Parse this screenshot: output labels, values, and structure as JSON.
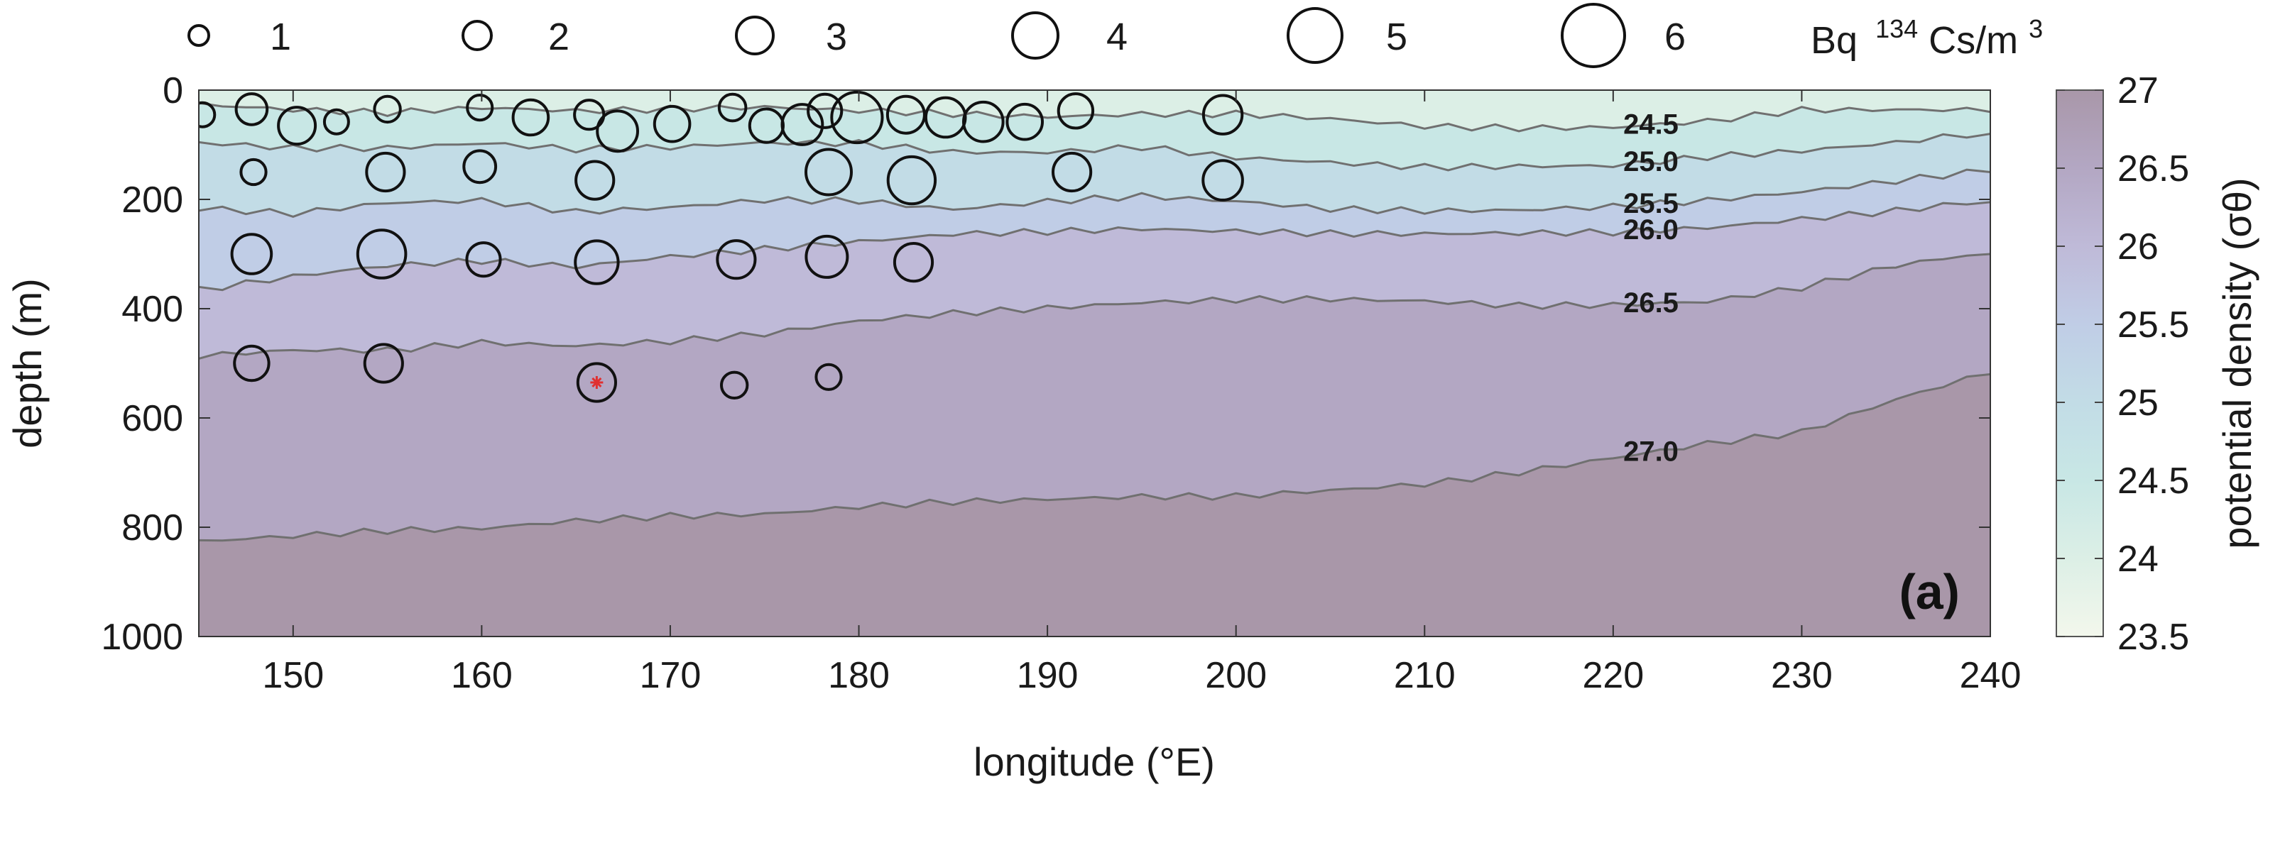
{
  "chart_data": {
    "type": "scatter",
    "panel_label": "(a)",
    "xlabel": "longitude (°E)",
    "ylabel": "depth (m)",
    "xlim": [
      145,
      240
    ],
    "ylim": [
      1000,
      0
    ],
    "xticks": [
      "150",
      "160",
      "170",
      "180",
      "190",
      "200",
      "210",
      "220",
      "230",
      "240"
    ],
    "yticks": [
      "0",
      "200",
      "400",
      "600",
      "800",
      "1000"
    ],
    "colorbar": {
      "label": "potential density (σθ)",
      "range": [
        23.5,
        27
      ],
      "ticks": [
        "23.5",
        "24",
        "24.5",
        "25",
        "25.5",
        "26",
        "26.5",
        "27"
      ],
      "colors": [
        "#f3f7ec",
        "#dcefe6",
        "#c8e7e5",
        "#c2dce6",
        "#c0cde6",
        "#bfbad8",
        "#b3a7c3",
        "#a997a9"
      ]
    },
    "contours": [
      {
        "level": "24.5",
        "x": [
          145,
          150,
          155,
          160,
          165,
          170,
          175,
          180,
          185,
          190,
          195,
          200,
          205,
          210,
          215,
          220,
          225,
          230,
          235,
          240
        ],
        "depth": [
          30,
          40,
          45,
          35,
          40,
          35,
          30,
          35,
          40,
          45,
          40,
          40,
          50,
          65,
          70,
          70,
          60,
          40,
          40,
          40
        ]
      },
      {
        "level": "25.0",
        "x": [
          145,
          150,
          155,
          160,
          165,
          170,
          175,
          180,
          185,
          190,
          195,
          200,
          205,
          210,
          215,
          220,
          225,
          230,
          235,
          240
        ],
        "depth": [
          100,
          110,
          110,
          100,
          110,
          105,
          95,
          95,
          110,
          110,
          100,
          120,
          130,
          140,
          140,
          140,
          125,
          115,
          100,
          80
        ]
      },
      {
        "level": "25.5",
        "x": [
          145,
          150,
          155,
          160,
          165,
          170,
          175,
          180,
          185,
          190,
          195,
          200,
          205,
          210,
          215,
          220,
          225,
          230,
          235,
          240
        ],
        "depth": [
          220,
          230,
          210,
          205,
          225,
          215,
          200,
          200,
          215,
          200,
          190,
          200,
          215,
          220,
          220,
          215,
          205,
          190,
          170,
          150
        ]
      },
      {
        "level": "26.0",
        "x": [
          145,
          150,
          155,
          160,
          165,
          170,
          175,
          180,
          185,
          190,
          195,
          200,
          205,
          210,
          215,
          220,
          225,
          230,
          235,
          240
        ],
        "depth": [
          370,
          345,
          325,
          315,
          325,
          305,
          290,
          275,
          260,
          255,
          250,
          255,
          260,
          262,
          262,
          262,
          255,
          240,
          225,
          205
        ]
      },
      {
        "level": "26.5",
        "x": [
          145,
          150,
          155,
          160,
          165,
          170,
          175,
          180,
          185,
          190,
          195,
          200,
          205,
          210,
          215,
          220,
          225,
          230,
          235,
          240
        ],
        "depth": [
          490,
          480,
          480,
          465,
          470,
          460,
          445,
          420,
          405,
          395,
          385,
          380,
          380,
          385,
          395,
          395,
          390,
          365,
          325,
          300
        ]
      },
      {
        "level": "27.0",
        "x": [
          145,
          150,
          155,
          160,
          165,
          170,
          175,
          180,
          185,
          190,
          195,
          200,
          205,
          210,
          215,
          220,
          225,
          230,
          235,
          240
        ],
        "depth": [
          830,
          820,
          810,
          805,
          790,
          780,
          775,
          760,
          750,
          745,
          740,
          740,
          730,
          720,
          700,
          675,
          650,
          630,
          570,
          520
        ]
      }
    ],
    "series": [
      {
        "x": [
          145.2,
          147.8,
          150.2,
          152.3,
          155.0,
          159.9,
          162.6,
          165.7,
          167.2,
          170.1,
          173.3,
          175.1,
          177.0,
          178.2,
          179.9,
          182.5,
          184.6,
          186.6,
          188.8,
          191.5,
          199.3,
          147.9,
          154.9,
          159.9,
          166.0,
          178.4,
          182.8,
          191.3,
          199.3,
          147.8,
          154.7,
          160.1,
          166.1,
          173.5,
          178.3,
          182.9,
          147.8,
          154.8,
          166.1,
          173.4,
          178.4
        ],
        "depth": [
          45,
          35,
          65,
          58,
          35,
          32,
          50,
          45,
          75,
          62,
          32,
          65,
          63,
          38,
          50,
          45,
          50,
          58,
          58,
          38,
          45,
          150,
          150,
          140,
          165,
          150,
          165,
          150,
          165,
          300,
          300,
          310,
          315,
          310,
          305,
          315,
          500,
          500,
          535,
          540,
          525
        ],
        "value": [
          1.5,
          2.3,
          3.0,
          1.5,
          1.7,
          1.6,
          2.8,
          2.1,
          3.4,
          2.8,
          1.8,
          2.6,
          3.4,
          2.6,
          4.6,
          3.0,
          3.3,
          3.3,
          2.8,
          2.7,
          3.2,
          1.6,
          3.1,
          2.4,
          3.1,
          4.0,
          4.2,
          3.1,
          3.3,
          3.3,
          4.3,
          2.6,
          3.7,
          3.1,
          3.5,
          3.1,
          2.7,
          3.1,
          3.1,
          1.7,
          1.6
        ],
        "marker_color": "#111111"
      }
    ],
    "highlight_point": {
      "x": 166.1,
      "depth": 535,
      "color": "#e03030"
    },
    "size_legend": {
      "values": [
        "1",
        "2",
        "3",
        "4",
        "5",
        "6"
      ],
      "unit_prefix": "Bq",
      "unit_sup": "134",
      "unit_element": "Cs/m",
      "unit_exp": "3"
    }
  }
}
